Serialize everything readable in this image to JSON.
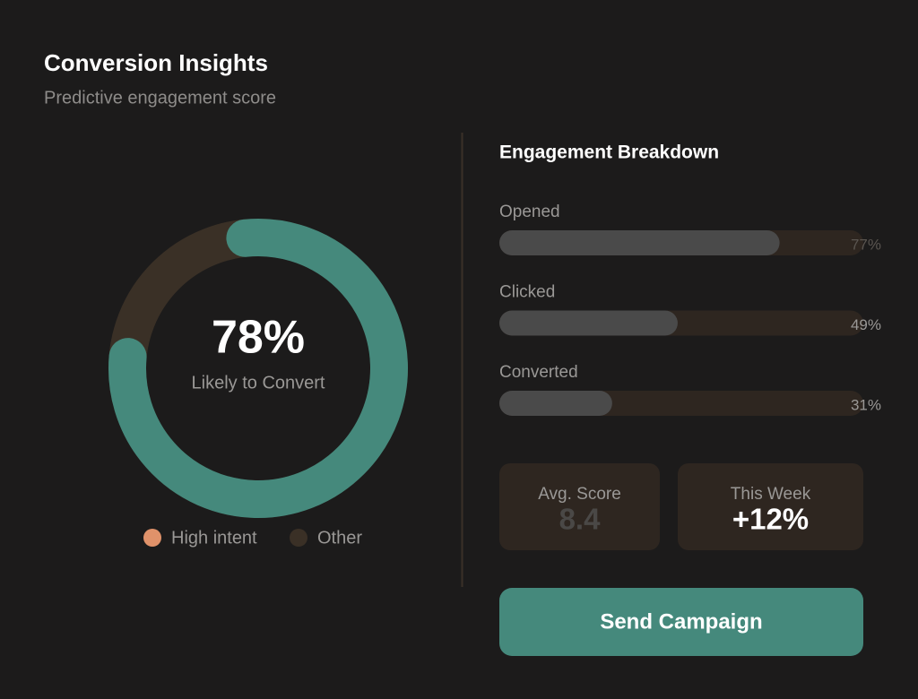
{
  "header": {
    "title": "Conversion Insights",
    "subtitle": "Predictive engagement score"
  },
  "donut": {
    "value": 78,
    "label": "78%",
    "caption": "Likely to Convert",
    "arc_color": "#45897c",
    "track_color": "#3a3026"
  },
  "legend": [
    {
      "label": "High intent",
      "color": "#e0926a"
    },
    {
      "label": "Other",
      "color": "#3a3026"
    }
  ],
  "breakdown_title": "Engagement Breakdown",
  "breakdown": [
    {
      "label": "Opened",
      "value": 77,
      "value_label": "77%"
    },
    {
      "label": "Clicked",
      "value": 49,
      "value_label": "49%"
    },
    {
      "label": "Converted",
      "value": 31,
      "value_label": "31%"
    }
  ],
  "stats": [
    {
      "label": "Avg. Score",
      "value": "8.4"
    },
    {
      "label": "This Week",
      "value": "+12%"
    }
  ],
  "button": "Send Campaign"
}
